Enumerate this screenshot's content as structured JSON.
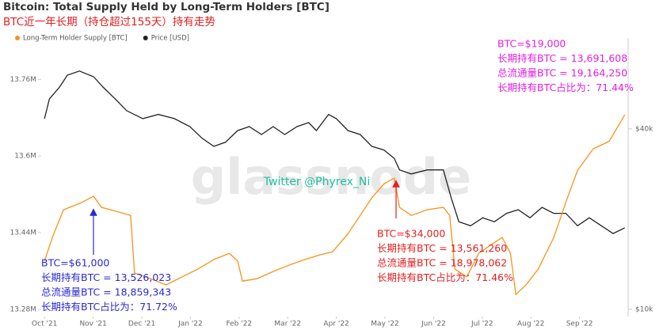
{
  "chart_data": {
    "type": "line",
    "title": "Bitcoin: Total Supply Held by Long-Term Holders [BTC]",
    "subtitle": "BTC近一年长期（持仓超过155天）持有走势",
    "watermark": "glassnode",
    "credit": "Twitter @Phyrex_Ni",
    "xlim": [
      -0.02,
      12.0
    ],
    "xticks": [
      {
        "value": 0,
        "label": "Oct '21"
      },
      {
        "value": 1,
        "label": "Nov '21"
      },
      {
        "value": 2,
        "label": "Dec '21"
      },
      {
        "value": 3,
        "label": "Jan '22"
      },
      {
        "value": 4,
        "label": "Feb '22"
      },
      {
        "value": 5,
        "label": "Mar '22"
      },
      {
        "value": 6,
        "label": "Apr '22"
      },
      {
        "value": 7,
        "label": "May '22"
      },
      {
        "value": 8,
        "label": "Jun '22"
      },
      {
        "value": 9,
        "label": "Jul '22"
      },
      {
        "value": 10,
        "label": "Aug '22"
      },
      {
        "value": 11,
        "label": "Sep '22"
      }
    ],
    "ylim": [
      13.265,
      13.83
    ],
    "yticks": [
      {
        "value": 13.28,
        "label": "13.28M"
      },
      {
        "value": 13.44,
        "label": "13.44M"
      },
      {
        "value": 13.6,
        "label": "13.6M"
      },
      {
        "value": 13.76,
        "label": "13.76M"
      }
    ],
    "y2lim": [
      9460,
      75700
    ],
    "y2scale": "log",
    "y2ticks": [
      {
        "value": 10000,
        "label": "$10k"
      },
      {
        "value": 40000,
        "label": "$40k"
      }
    ],
    "series": [
      {
        "name": "Long-Term Holder Supply [BTC]",
        "color": "#f7931a",
        "x": [
          0,
          0.16,
          0.39,
          0.72,
          1.01,
          1.17,
          1.53,
          1.77,
          1.85,
          2.18,
          2.5,
          2.83,
          3.15,
          3.48,
          3.8,
          3.97,
          4.07,
          4.37,
          4.7,
          5.02,
          5.35,
          5.67,
          5.92,
          6.24,
          6.49,
          6.73,
          6.98,
          7.19,
          7.3,
          7.54,
          7.87,
          8.2,
          8.33,
          8.44,
          8.68,
          8.93,
          9.17,
          9.41,
          9.58,
          9.69,
          9.9,
          10.15,
          10.47,
          10.72,
          10.96,
          11.28,
          11.61,
          11.93
        ],
        "values": [
          13.381,
          13.43,
          13.488,
          13.501,
          13.516,
          13.493,
          13.483,
          13.476,
          13.356,
          13.344,
          13.331,
          13.348,
          13.364,
          13.384,
          13.397,
          13.381,
          13.339,
          13.344,
          13.359,
          13.372,
          13.384,
          13.394,
          13.4,
          13.438,
          13.476,
          13.513,
          13.542,
          13.554,
          13.493,
          13.476,
          13.488,
          13.493,
          13.476,
          13.364,
          13.348,
          13.397,
          13.414,
          13.43,
          13.397,
          13.311,
          13.331,
          13.364,
          13.43,
          13.504,
          13.57,
          13.615,
          13.631,
          13.686
        ]
      },
      {
        "name": "Price [USD]",
        "color": "#222222",
        "axis": "y2",
        "x": [
          0,
          0.1,
          0.31,
          0.47,
          0.72,
          1.01,
          1.2,
          1.45,
          1.69,
          2.02,
          2.34,
          2.67,
          2.99,
          3.24,
          3.48,
          3.72,
          3.97,
          4.21,
          4.46,
          4.7,
          4.94,
          5.19,
          5.43,
          5.59,
          5.84,
          6.0,
          6.24,
          6.49,
          6.73,
          6.98,
          7.19,
          7.3,
          7.54,
          7.87,
          8.2,
          8.36,
          8.52,
          8.76,
          9.01,
          9.25,
          9.5,
          9.74,
          9.98,
          10.23,
          10.47,
          10.72,
          10.96,
          11.2,
          11.45,
          11.69,
          11.93
        ],
        "values": [
          43300,
          50400,
          55200,
          60500,
          62400,
          59700,
          55200,
          50400,
          46000,
          43300,
          44700,
          43300,
          40700,
          37200,
          35000,
          36100,
          39500,
          40700,
          38300,
          40700,
          38300,
          40700,
          42000,
          39500,
          44700,
          43300,
          39500,
          38300,
          35000,
          34000,
          31900,
          29200,
          28300,
          29200,
          29200,
          23600,
          19600,
          19000,
          20200,
          19600,
          20900,
          21500,
          20200,
          21900,
          20900,
          20900,
          19000,
          20200,
          19000,
          17900,
          18700
        ]
      }
    ],
    "annotations": [
      {
        "color": "#2a2ad0",
        "lines": [
          "BTC=$61,000",
          "长期持有BTC = 13,526,023",
          "总流通量BTC = 18,859,343",
          "长期持有BTC占比为：71.72%"
        ]
      },
      {
        "color": "#e02020",
        "lines": [
          "BTC=$34,000",
          "长期持有BTC = 13,561,260",
          "总流通量BTC = 18,978,062",
          "长期持有BTC占比为：71.46%"
        ]
      },
      {
        "color": "#e020e0",
        "lines": [
          "BTC=$19,000",
          "长期持有BTC = 13,691,608",
          "总流通量BTC = 19,164,250",
          "长期持有BTC占比为：71.44%"
        ]
      }
    ]
  }
}
